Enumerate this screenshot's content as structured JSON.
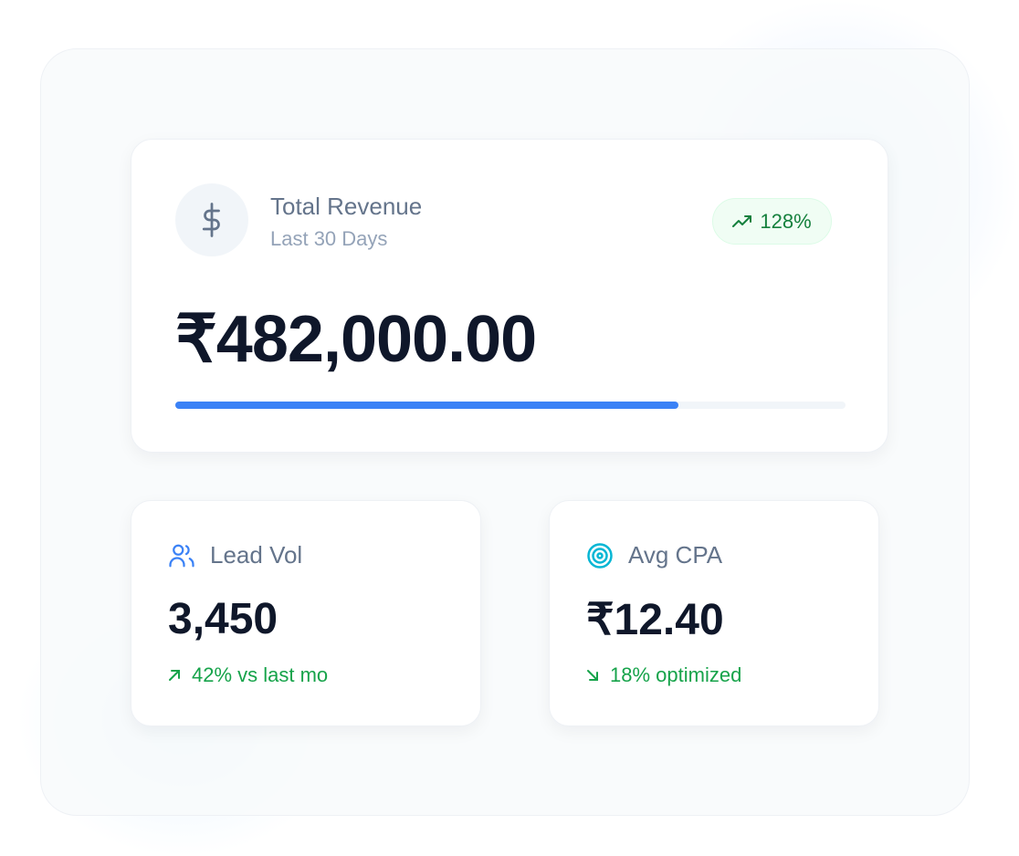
{
  "colors": {
    "accent": "#3b82f6",
    "positive": "#16a34a",
    "badge_bg": "#f0fdf4",
    "target_icon": "#06b6d4",
    "value_text": "#0f172a"
  },
  "revenue": {
    "icon": "dollar-icon",
    "title": "Total Revenue",
    "subtitle": "Last 30 Days",
    "badge_icon": "trending-up-icon",
    "badge": "128%",
    "value": "₹482,000.00",
    "progress_percent": 75
  },
  "cards": [
    {
      "icon": "users-icon",
      "label": "Lead Vol",
      "value": "3,450",
      "trend_icon": "arrow-up-right-icon",
      "trend": "42% vs last mo"
    },
    {
      "icon": "target-icon",
      "label": "Avg CPA",
      "value": "₹12.40",
      "trend_icon": "arrow-down-right-icon",
      "trend": "18% optimized"
    }
  ]
}
